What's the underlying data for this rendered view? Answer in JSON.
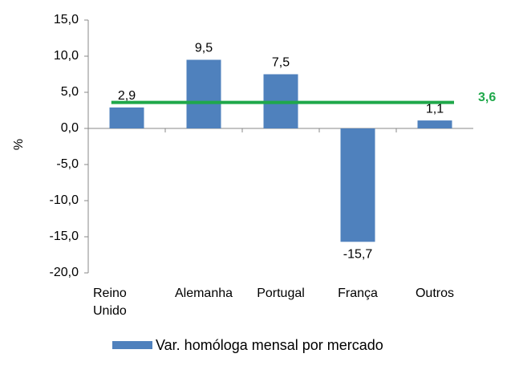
{
  "chart_data": {
    "type": "bar",
    "y_label": "%",
    "categories": [
      "Reino Unido",
      "Alemanha",
      "Portugal",
      "França",
      "Outros"
    ],
    "series": [
      {
        "name": "Var. homóloga mensal por mercado",
        "color": "#4f81bd",
        "values": [
          2.9,
          9.5,
          7.5,
          -15.7,
          1.1
        ],
        "value_labels": [
          "2,9",
          "9,5",
          "7,5",
          "-15,7",
          "1,1"
        ]
      }
    ],
    "reference_line": {
      "value": 3.6,
      "label": "3,6",
      "color": "#1fa84a"
    },
    "ylim": [
      -20,
      15
    ],
    "yticks": [
      {
        "value": -20,
        "label": "-20,0"
      },
      {
        "value": -15,
        "label": "-15,0"
      },
      {
        "value": -10,
        "label": "-10,0"
      },
      {
        "value": -5,
        "label": "-5,0"
      },
      {
        "value": 0,
        "label": "0,0"
      },
      {
        "value": 5,
        "label": "5,0"
      },
      {
        "value": 10,
        "label": "10,0"
      },
      {
        "value": 15,
        "label": "15,0"
      }
    ],
    "legend": "bottom"
  }
}
